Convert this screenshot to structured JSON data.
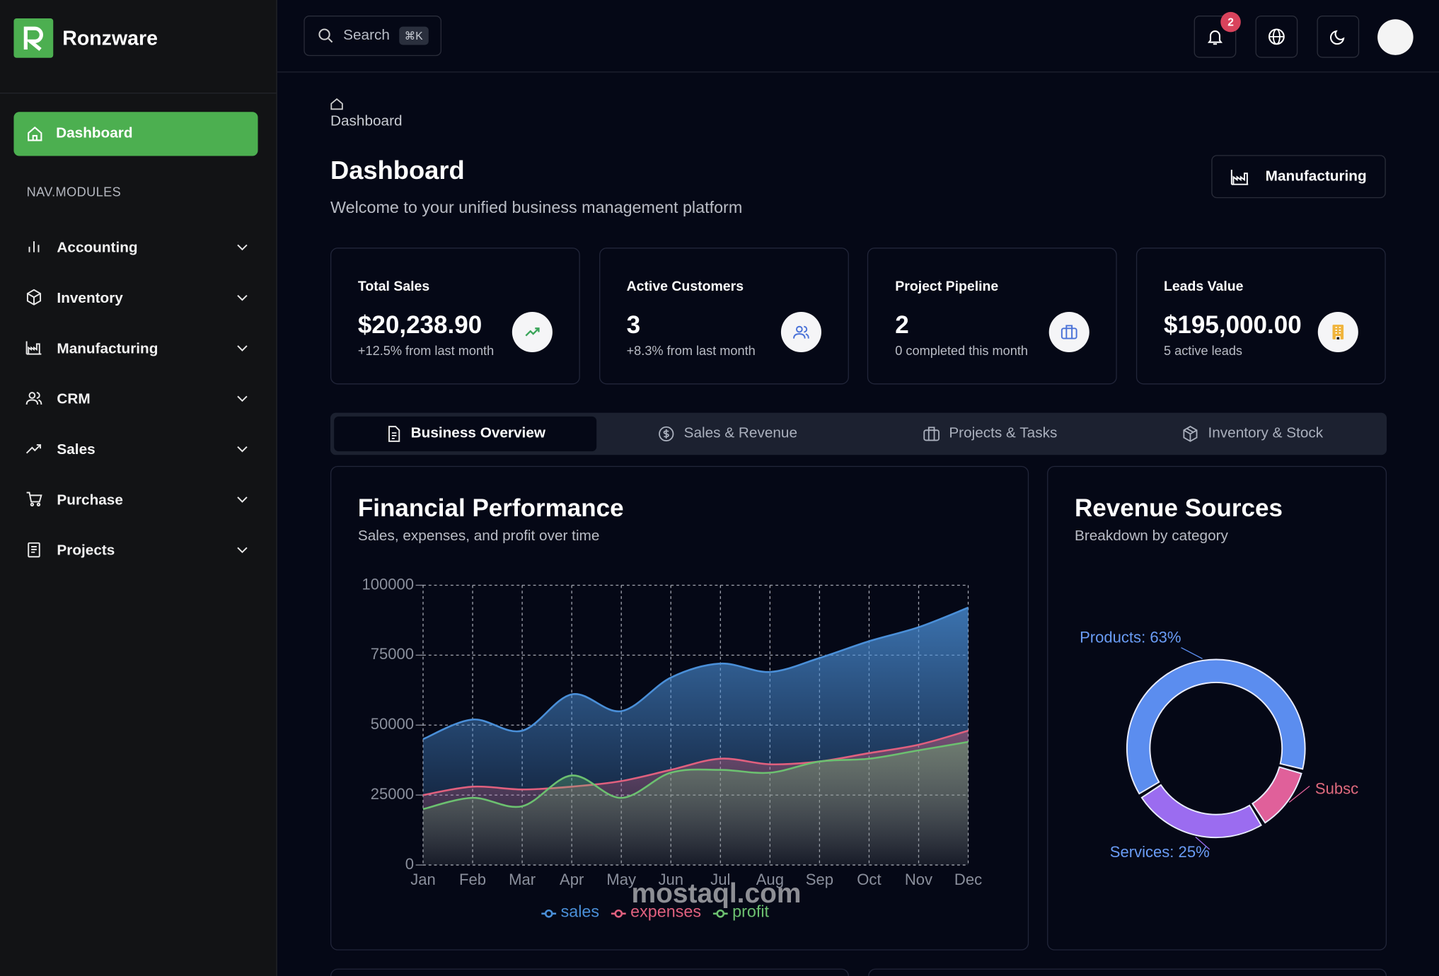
{
  "brand": "Ronzware",
  "search": {
    "placeholder": "Search",
    "shortcut": "⌘K"
  },
  "notification_count": 2,
  "sidebar": {
    "active": "Dashboard",
    "section": "NAV.MODULES",
    "items": [
      "Accounting",
      "Inventory",
      "Manufacturing",
      "CRM",
      "Sales",
      "Purchase",
      "Projects"
    ]
  },
  "breadcrumb": "Dashboard",
  "page": {
    "title": "Dashboard",
    "subtitle": "Welcome to your unified business management platform",
    "module_button": "Manufacturing"
  },
  "stats": [
    {
      "label": "Total Sales",
      "value": "$20,238.90",
      "note": "+12.5% from last month"
    },
    {
      "label": "Active Customers",
      "value": "3",
      "note": "+8.3% from last month"
    },
    {
      "label": "Project Pipeline",
      "value": "2",
      "note": "0 completed this month"
    },
    {
      "label": "Leads Value",
      "value": "$195,000.00",
      "note": "5 active leads"
    }
  ],
  "tabs": [
    "Business Overview",
    "Sales & Revenue",
    "Projects & Tasks",
    "Inventory & Stock"
  ],
  "chart_data": [
    {
      "type": "area",
      "title": "Financial Performance",
      "subtitle": "Sales, expenses, and profit over time",
      "categories": [
        "Jan",
        "Feb",
        "Mar",
        "Apr",
        "May",
        "Jun",
        "Jul",
        "Aug",
        "Sep",
        "Oct",
        "Nov",
        "Dec"
      ],
      "ylim": [
        0,
        100000
      ],
      "yticks": [
        0,
        25000,
        50000,
        75000,
        100000
      ],
      "grid": true,
      "series": [
        {
          "name": "sales",
          "color": "#4a8fd8",
          "values": [
            45000,
            52000,
            48000,
            61000,
            55000,
            67000,
            72000,
            69000,
            74000,
            80000,
            85000,
            92000
          ]
        },
        {
          "name": "expenses",
          "color": "#e0607e",
          "values": [
            25000,
            28000,
            27000,
            28000,
            30000,
            34000,
            38000,
            36000,
            37000,
            40000,
            43000,
            48000
          ]
        },
        {
          "name": "profit",
          "color": "#6cc070",
          "values": [
            20000,
            24000,
            21000,
            32000,
            24000,
            33000,
            34000,
            33000,
            37000,
            38000,
            41000,
            44000
          ]
        }
      ]
    },
    {
      "type": "donut",
      "title": "Revenue Sources",
      "subtitle": "Breakdown by category",
      "values": [
        63,
        12,
        25
      ],
      "value_labels": [
        "Products: 63%",
        "Subsc",
        "Services: 25%"
      ],
      "colors": [
        "#5b8def",
        "#e0609a",
        "#9b6cf0"
      ],
      "label_colors": [
        "#6a9cf5",
        "#e06a7e",
        "#6a9cf5"
      ]
    }
  ],
  "watermark": "mostaql.com"
}
